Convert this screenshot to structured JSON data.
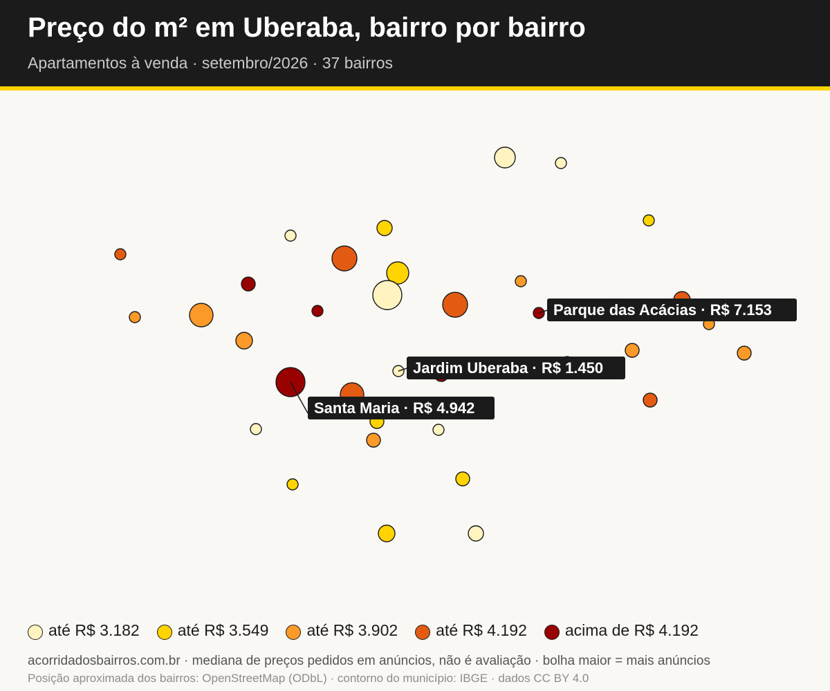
{
  "header": {
    "title": "Preço do m² em Uberaba, bairro por bairro",
    "subtitle": "Apartamentos à venda · setembro/2026 · 37 bairros"
  },
  "colors": {
    "header_bg": "#1b1b1b",
    "accent": "#ffd400",
    "background": "#faf8f4",
    "class_1": "#fff3c0",
    "class_2": "#ffd400",
    "class_3": "#fb9a29",
    "class_4": "#e35b13",
    "class_5": "#990000"
  },
  "legend": {
    "items": [
      {
        "label": "até R$ 3.182",
        "color": "#fff3c0"
      },
      {
        "label": "até R$ 3.549",
        "color": "#ffd400"
      },
      {
        "label": "até R$ 3.902",
        "color": "#fb9a29"
      },
      {
        "label": "até R$ 4.192",
        "color": "#e35b13"
      },
      {
        "label": "acima de R$ 4.192",
        "color": "#990000"
      }
    ]
  },
  "callouts": [
    {
      "text": "Parque das Acácias · R$ 7.153",
      "neighborhood": "Parque das Acácias",
      "price": 7153
    },
    {
      "text": "Jardim Uberaba · R$ 1.450",
      "neighborhood": "Jardim Uberaba",
      "price": 1450
    },
    {
      "text": "Santa Maria · R$ 4.942",
      "neighborhood": "Santa Maria",
      "price": 4942
    }
  ],
  "footer": {
    "line1": "acorridadosbairros.com.br · mediana de preços pedidos em anúncios, não é avaliação · bolha maior = mais anúncios",
    "line2": "Posição aproximada dos bairros: OpenStreetMap (ODbL) · contorno do município: IBGE · dados CC BY 4.0"
  }
}
